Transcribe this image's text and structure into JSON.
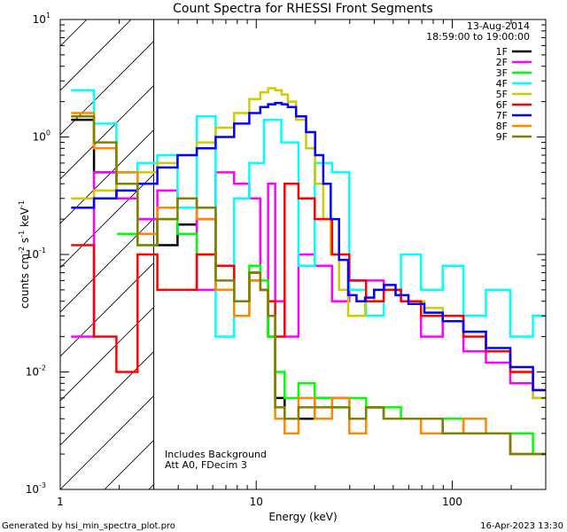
{
  "chart_data": {
    "type": "line",
    "title": "Count Spectra for RHESSI Front Segments",
    "xlabel": "Energy (keV)",
    "ylabel_main": "counts cm",
    "ylabel_sup1": "-2",
    "ylabel_mid": " s",
    "ylabel_sup2": "-1",
    "ylabel_end": " keV",
    "ylabel_sup3": "-1",
    "xscale": "log",
    "yscale": "log",
    "xlim": [
      1,
      300
    ],
    "ylim": [
      0.001,
      10
    ],
    "x_ticks": [
      {
        "value": 1,
        "label": "1"
      },
      {
        "value": 10,
        "label": "10"
      },
      {
        "value": 100,
        "label": "100"
      }
    ],
    "y_ticks": [
      {
        "value": 10,
        "base": "10",
        "exp": "1"
      },
      {
        "value": 1,
        "base": "10",
        "exp": "0"
      },
      {
        "value": 0.1,
        "base": "10",
        "exp": "-1"
      },
      {
        "value": 0.01,
        "base": "10",
        "exp": "-2"
      },
      {
        "value": 0.001,
        "base": "10",
        "exp": "-3"
      }
    ],
    "hatched_region": {
      "x_min": 1,
      "x_max": 3
    },
    "date": "13-Aug-2014",
    "time_range": "18:59:00 to 19:00:00",
    "annotation_line1": "Includes Background",
    "annotation_line2": "Att A0, FDecim 3",
    "footer_left": "Generated by hsi_min_spectra_plot.pro",
    "footer_right": "16-Apr-2023 13:30",
    "legend_placement": "top-right",
    "series": [
      {
        "name": "1F",
        "color": "#000000",
        "x": [
          1.3,
          1.7,
          2.2,
          2.8,
          3.5,
          4.5,
          5.5,
          7,
          8.5,
          10,
          11,
          12,
          13,
          15,
          18,
          22,
          27,
          33,
          40,
          50,
          60,
          80,
          100,
          130,
          170,
          230,
          290
        ],
        "y": [
          1.4,
          0.5,
          0.3,
          0.2,
          0.12,
          0.18,
          0.2,
          0.08,
          0.04,
          0.07,
          0.05,
          0.02,
          0.006,
          0.004,
          0.004,
          0.006,
          0.006,
          0.004,
          0.005,
          0.004,
          0.004,
          0.004,
          0.003,
          0.003,
          0.003,
          0.002,
          0.002
        ]
      },
      {
        "name": "2F",
        "color": "#ff00ff",
        "x": [
          1.3,
          1.7,
          2.2,
          2.8,
          3.5,
          4.5,
          5.5,
          7,
          8.5,
          10,
          11,
          12,
          13,
          15,
          18,
          22,
          27,
          33,
          40,
          50,
          60,
          80,
          100,
          130,
          170,
          230,
          290
        ],
        "y": [
          0.02,
          0.5,
          0.3,
          0.2,
          0.35,
          0.3,
          0.05,
          0.5,
          0.4,
          0.3,
          0.05,
          0.4,
          0.04,
          0.02,
          0.1,
          0.08,
          0.04,
          0.06,
          0.06,
          0.05,
          0.04,
          0.02,
          0.03,
          0.015,
          0.012,
          0.008,
          0.006
        ]
      },
      {
        "name": "3F",
        "color": "#00ff00",
        "x": [
          2.2,
          2.8,
          3.5,
          4.5,
          5.5,
          7,
          8.5,
          10,
          11,
          12,
          13,
          15,
          18,
          22,
          27,
          33,
          40,
          50,
          60,
          80,
          100,
          130,
          170,
          230,
          290
        ],
        "y": [
          0.15,
          0.12,
          0.2,
          0.15,
          0.1,
          0.05,
          0.03,
          0.08,
          0.06,
          0.02,
          0.01,
          0.006,
          0.008,
          0.006,
          0.005,
          0.006,
          0.005,
          0.005,
          0.004,
          0.004,
          0.004,
          0.003,
          0.003,
          0.003,
          0.002
        ]
      },
      {
        "name": "4F",
        "color": "#00ffff",
        "x": [
          1.3,
          1.7,
          2.2,
          2.8,
          3.5,
          4.5,
          5.5,
          7,
          8.5,
          10,
          12,
          15,
          18,
          22,
          27,
          33,
          40,
          50,
          60,
          80,
          100,
          130,
          170,
          230,
          290
        ],
        "y": [
          2.5,
          1.3,
          0.5,
          0.6,
          0.7,
          0.25,
          1.5,
          0.02,
          0.3,
          0.6,
          1.4,
          0.9,
          0.08,
          0.6,
          0.5,
          0.05,
          0.03,
          0.05,
          0.1,
          0.05,
          0.08,
          0.03,
          0.05,
          0.02,
          0.03
        ]
      },
      {
        "name": "5F",
        "color": "#cccc00",
        "x": [
          1.3,
          1.7,
          2.2,
          2.8,
          3.5,
          4.5,
          5.5,
          7,
          8.5,
          10,
          11,
          12,
          13,
          14,
          15,
          17,
          19,
          21,
          23,
          25,
          28,
          31,
          34,
          38,
          42,
          48,
          55,
          65,
          80,
          100,
          130,
          170,
          230,
          290
        ],
        "y": [
          0.3,
          0.35,
          0.4,
          0.5,
          0.6,
          0.7,
          0.9,
          1.2,
          1.6,
          2.1,
          2.4,
          2.6,
          2.5,
          2.3,
          2.0,
          1.4,
          0.8,
          0.4,
          0.2,
          0.1,
          0.05,
          0.03,
          0.03,
          0.04,
          0.05,
          0.05,
          0.045,
          0.04,
          0.035,
          0.03,
          0.022,
          0.015,
          0.01,
          0.006
        ]
      },
      {
        "name": "6F",
        "color": "#ff0000",
        "x": [
          1.3,
          1.7,
          2.2,
          2.8,
          3.5,
          4.5,
          5.5,
          7,
          8.5,
          10,
          11,
          12,
          13,
          15,
          18,
          22,
          27,
          33,
          40,
          50,
          60,
          80,
          100,
          130,
          170,
          230,
          290
        ],
        "y": [
          0.12,
          0.02,
          0.01,
          0.1,
          0.05,
          0.05,
          0.1,
          0.08,
          0.04,
          0.06,
          0.05,
          0.04,
          0.02,
          0.4,
          0.3,
          0.2,
          0.1,
          0.06,
          0.04,
          0.05,
          0.04,
          0.03,
          0.03,
          0.02,
          0.015,
          0.01,
          0.007
        ]
      },
      {
        "name": "7F",
        "color": "#0000ff",
        "x": [
          1.3,
          1.7,
          2.2,
          2.8,
          3.5,
          4.5,
          5.5,
          7,
          8.5,
          10,
          11,
          12,
          13,
          14,
          15,
          17,
          19,
          21,
          23,
          25,
          28,
          31,
          34,
          38,
          42,
          48,
          55,
          65,
          80,
          100,
          130,
          170,
          230,
          290
        ],
        "y": [
          0.25,
          0.3,
          0.35,
          0.4,
          0.55,
          0.7,
          0.8,
          1.0,
          1.3,
          1.6,
          1.8,
          1.9,
          1.95,
          1.9,
          1.8,
          1.5,
          1.1,
          0.7,
          0.4,
          0.2,
          0.09,
          0.045,
          0.04,
          0.043,
          0.05,
          0.055,
          0.045,
          0.038,
          0.032,
          0.027,
          0.022,
          0.016,
          0.011,
          0.007
        ]
      },
      {
        "name": "8F",
        "color": "#ff8800",
        "x": [
          1.3,
          1.7,
          2.2,
          2.8,
          3.5,
          4.5,
          5.5,
          7,
          8.5,
          10,
          11,
          12,
          13,
          15,
          18,
          22,
          27,
          33,
          40,
          50,
          60,
          80,
          100,
          130,
          170,
          230,
          290
        ],
        "y": [
          1.6,
          0.8,
          0.5,
          0.15,
          0.25,
          0.3,
          0.2,
          0.05,
          0.03,
          0.06,
          0.05,
          0.03,
          0.004,
          0.003,
          0.006,
          0.004,
          0.006,
          0.003,
          0.005,
          0.004,
          0.004,
          0.003,
          0.003,
          0.004,
          0.003,
          0.002,
          0.002
        ]
      },
      {
        "name": "9F",
        "color": "#808000",
        "x": [
          1.3,
          1.7,
          2.2,
          2.8,
          3.5,
          4.5,
          5.5,
          7,
          8.5,
          10,
          11,
          12,
          13,
          15,
          18,
          22,
          27,
          33,
          40,
          50,
          60,
          80,
          100,
          130,
          170,
          230,
          290
        ],
        "y": [
          1.5,
          0.9,
          0.4,
          0.12,
          0.2,
          0.3,
          0.25,
          0.06,
          0.04,
          0.07,
          0.05,
          0.03,
          0.005,
          0.004,
          0.005,
          0.005,
          0.005,
          0.004,
          0.005,
          0.004,
          0.004,
          0.004,
          0.003,
          0.003,
          0.003,
          0.002,
          0.002
        ]
      }
    ]
  }
}
